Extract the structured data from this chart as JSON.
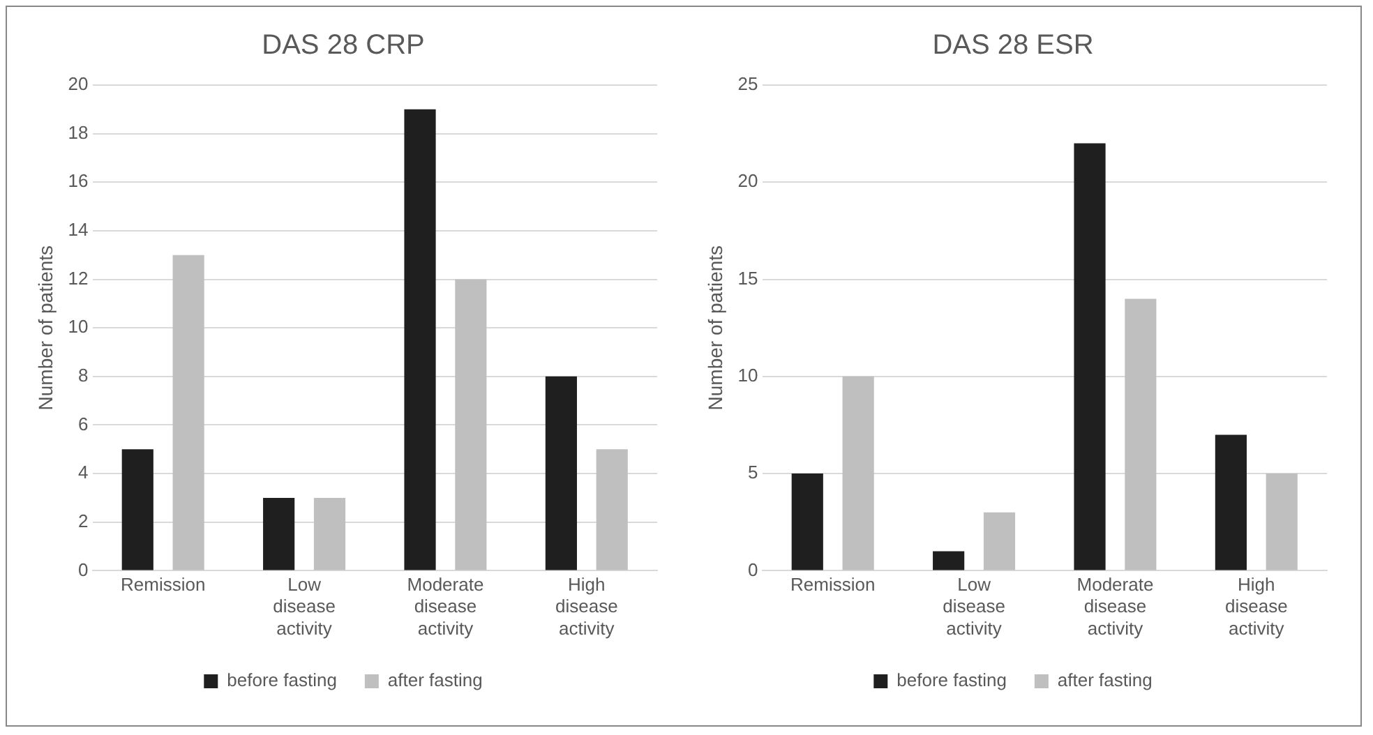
{
  "chart_data": [
    {
      "type": "bar",
      "title": "DAS 28 CRP",
      "ylabel": "Number of patients",
      "categories": [
        "Remission",
        "Low disease activity",
        "Moderate disease activity",
        "High disease activity"
      ],
      "series": [
        {
          "name": "before fasting",
          "color": "#1f1f1f",
          "values": [
            5,
            3,
            19,
            8
          ]
        },
        {
          "name": "after fasting",
          "color": "#bfbfbf",
          "values": [
            13,
            3,
            12,
            5
          ]
        }
      ],
      "ylim": [
        0,
        20
      ],
      "yticks": [
        0,
        2,
        4,
        6,
        8,
        10,
        12,
        14,
        16,
        18,
        20
      ],
      "grid": "y",
      "legend": "bottom"
    },
    {
      "type": "bar",
      "title": "DAS 28 ESR",
      "ylabel": "Number of patients",
      "categories": [
        "Remission",
        "Low disease activity",
        "Moderate disease activity",
        "High disease activity"
      ],
      "series": [
        {
          "name": "before fasting",
          "color": "#1f1f1f",
          "values": [
            5,
            1,
            22,
            7
          ]
        },
        {
          "name": "after fasting",
          "color": "#bfbfbf",
          "values": [
            10,
            3,
            14,
            5
          ]
        }
      ],
      "ylim": [
        0,
        25
      ],
      "yticks": [
        0,
        5,
        10,
        15,
        20,
        25
      ],
      "grid": "y",
      "legend": "bottom"
    }
  ]
}
